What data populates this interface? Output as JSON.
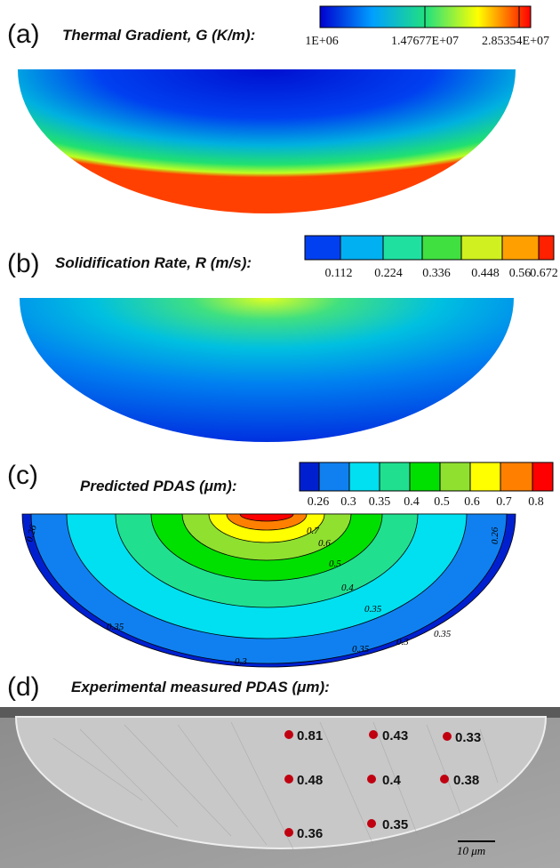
{
  "panels": [
    {
      "label": "(a)",
      "title": "Thermal Gradient, G (K/m):",
      "colorbar": {
        "ticks": [
          "1E+06",
          "1.47677E+07",
          "2.85354E+07"
        ]
      }
    },
    {
      "label": "(b)",
      "title": "Solidification Rate, R (m/s):",
      "colorbar": {
        "ticks": [
          "0.112",
          "0.224",
          "0.336",
          "0.448",
          "0.56",
          "0.672"
        ]
      }
    },
    {
      "label": "(c)",
      "title": "Predicted PDAS (μm):",
      "colorbar": {
        "ticks": [
          "0.26",
          "0.3",
          "0.35",
          "0.4",
          "0.5",
          "0.6",
          "0.7",
          "0.8"
        ]
      },
      "contour_labels": [
        "0.7",
        "0.6",
        "0.5",
        "0.4",
        "0.35",
        "0.3",
        "0.35",
        "0.35",
        "0.3",
        "0.35",
        "0.26",
        "0.26"
      ]
    },
    {
      "label": "(d)",
      "title": "Experimental measured PDAS (μm):",
      "points": [
        0.81,
        0.43,
        0.33,
        0.48,
        0.4,
        0.38,
        0.36,
        0.35
      ],
      "scale_bar": "10 μm"
    }
  ]
}
